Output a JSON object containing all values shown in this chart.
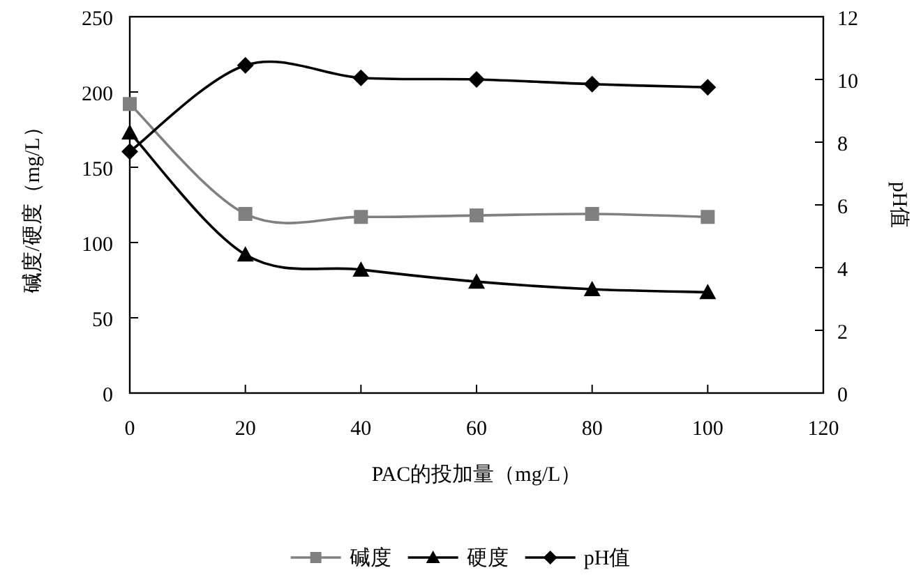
{
  "chart_data": {
    "type": "line",
    "xlabel": "PAC的投加量（mg/L）",
    "ylabel": "碱度/硬度（mg/L）",
    "y2label": "pH值",
    "x": [
      0,
      20,
      40,
      60,
      80,
      100
    ],
    "series": [
      {
        "name": "碱度",
        "color": "#808080",
        "marker": "square",
        "values": [
          192,
          119,
          117,
          118,
          119,
          117
        ]
      },
      {
        "name": "硬度",
        "color": "#000000",
        "marker": "triangle",
        "values": [
          173,
          92,
          82,
          74,
          69,
          67
        ]
      },
      {
        "name": "pH值",
        "color": "#000000",
        "marker": "diamond",
        "axis": "y2",
        "values": [
          7.7,
          10.45,
          10.05,
          10.0,
          9.85,
          9.75
        ]
      }
    ],
    "xlim": [
      0,
      120
    ],
    "xticks": [
      0,
      20,
      40,
      60,
      80,
      100,
      120
    ],
    "ylim": [
      0,
      250
    ],
    "yticks": [
      0,
      50,
      100,
      150,
      200,
      250
    ],
    "y2lim": [
      0,
      12
    ],
    "y2ticks": [
      0,
      2,
      4,
      6,
      8,
      10,
      12
    ],
    "legend": "bottom",
    "grid": false
  }
}
